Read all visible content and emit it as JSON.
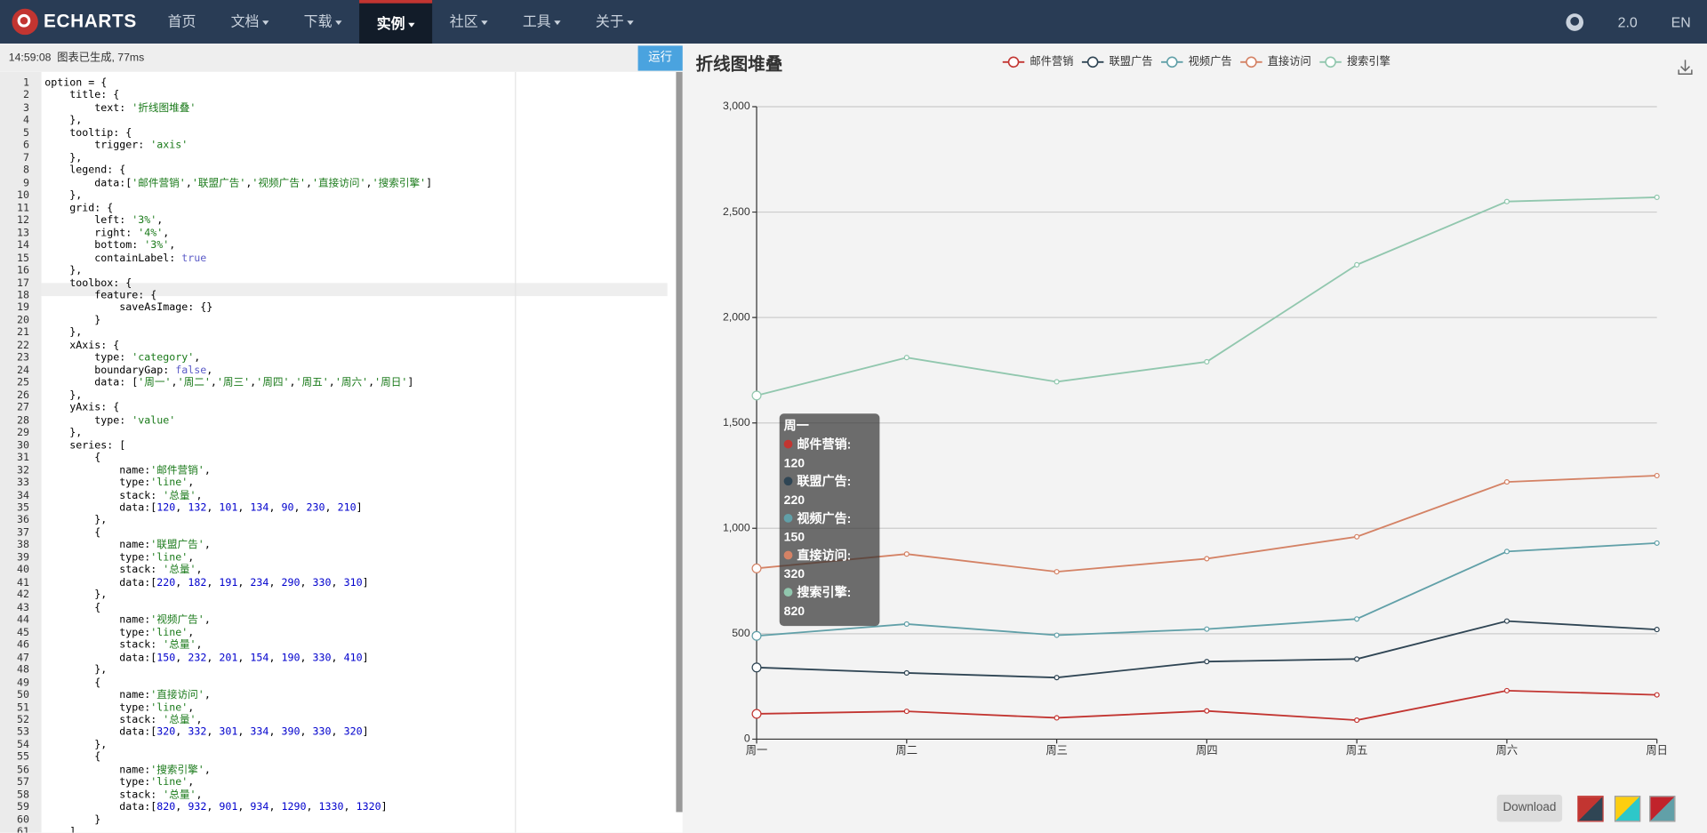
{
  "nav": {
    "logo": "ECHARTS",
    "menu": [
      {
        "label": "首页",
        "dropdown": false,
        "active": false
      },
      {
        "label": "文档",
        "dropdown": true,
        "active": false
      },
      {
        "label": "下载",
        "dropdown": true,
        "active": false
      },
      {
        "label": "实例",
        "dropdown": true,
        "active": true
      },
      {
        "label": "社区",
        "dropdown": true,
        "active": false
      },
      {
        "label": "工具",
        "dropdown": true,
        "active": false
      },
      {
        "label": "关于",
        "dropdown": true,
        "active": false
      }
    ],
    "version": "2.0",
    "lang": "EN"
  },
  "status": {
    "text": "14:59:08  图表已生成, 77ms",
    "run": "运行"
  },
  "editor": {
    "line_numbers": [
      1,
      2,
      3,
      4,
      5,
      6,
      7,
      8,
      9,
      10,
      11,
      12,
      13,
      14,
      15,
      16,
      17,
      18,
      19,
      20,
      21,
      22,
      23,
      24,
      25,
      26,
      27,
      28,
      29,
      30,
      31,
      32,
      33,
      34,
      35,
      36,
      37,
      38,
      39,
      40,
      41,
      42,
      43,
      44,
      45,
      46,
      47,
      48,
      49,
      50,
      51,
      52,
      53,
      54,
      55,
      56,
      57,
      58,
      59,
      60,
      61
    ],
    "lines": [
      "option = {",
      "    title: {",
      "        text: '折线图堆叠'",
      "    },",
      "    tooltip: {",
      "        trigger: 'axis'",
      "    },",
      "    legend: {",
      "        data:['邮件营销','联盟广告','视频广告','直接访问','搜索引擎']",
      "    },",
      "    grid: {",
      "        left: '3%',",
      "        right: '4%',",
      "        bottom: '3%',",
      "        containLabel: true",
      "    },",
      "    toolbox: {",
      "        feature: {",
      "            saveAsImage: {}",
      "        }",
      "    },",
      "    xAxis: {",
      "        type: 'category',",
      "        boundaryGap: false,",
      "        data: ['周一','周二','周三','周四','周五','周六','周日']",
      "    },",
      "    yAxis: {",
      "        type: 'value'",
      "    },",
      "    series: [",
      "        {",
      "            name:'邮件营销',",
      "            type:'line',",
      "            stack: '总量',",
      "            data:[120, 132, 101, 134, 90, 230, 210]",
      "        },",
      "        {",
      "            name:'联盟广告',",
      "            type:'line',",
      "            stack: '总量',",
      "            data:[220, 182, 191, 234, 290, 330, 310]",
      "        },",
      "        {",
      "            name:'视频广告',",
      "            type:'line',",
      "            stack: '总量',",
      "            data:[150, 232, 201, 154, 190, 330, 410]",
      "        },",
      "        {",
      "            name:'直接访问',",
      "            type:'line',",
      "            stack: '总量',",
      "            data:[320, 332, 301, 334, 390, 330, 320]",
      "        },",
      "        {",
      "            name:'搜索引擎',",
      "            type:'line',",
      "            stack: '总量',",
      "            data:[820, 932, 901, 934, 1290, 1330, 1320]",
      "        }",
      "    ]"
    ]
  },
  "chart_data": {
    "type": "line",
    "stacked": true,
    "title": "折线图堆叠",
    "categories": [
      "周一",
      "周二",
      "周三",
      "周四",
      "周五",
      "周六",
      "周日"
    ],
    "series": [
      {
        "name": "邮件营销",
        "color": "#c23531",
        "values": [
          120,
          132,
          101,
          134,
          90,
          230,
          210
        ]
      },
      {
        "name": "联盟广告",
        "color": "#2f4554",
        "values": [
          220,
          182,
          191,
          234,
          290,
          330,
          310
        ]
      },
      {
        "name": "视频广告",
        "color": "#61a0a8",
        "values": [
          150,
          232,
          201,
          154,
          190,
          330,
          410
        ]
      },
      {
        "name": "直接访问",
        "color": "#d48265",
        "values": [
          320,
          332,
          301,
          334,
          390,
          330,
          320
        ]
      },
      {
        "name": "搜索引擎",
        "color": "#91c7ae",
        "values": [
          820,
          932,
          901,
          934,
          1290,
          1330,
          1320
        ]
      }
    ],
    "ylim": [
      0,
      3000
    ],
    "yticks": [
      0,
      500,
      {
        "value": 1000,
        "label": "1,000"
      },
      {
        "value": 1500,
        "label": "1,500"
      },
      {
        "value": 2000,
        "label": "2,000"
      },
      {
        "value": 2500,
        "label": "2,500"
      },
      {
        "value": 3000,
        "label": "3,000"
      }
    ],
    "grid": true,
    "legend": "top",
    "tooltip": {
      "title": "周一",
      "items": [
        "邮件营销: 120",
        "联盟广告: 220",
        "视频广告: 150",
        "直接访问: 320",
        "搜索引擎: 820"
      ]
    }
  },
  "download": "Download"
}
